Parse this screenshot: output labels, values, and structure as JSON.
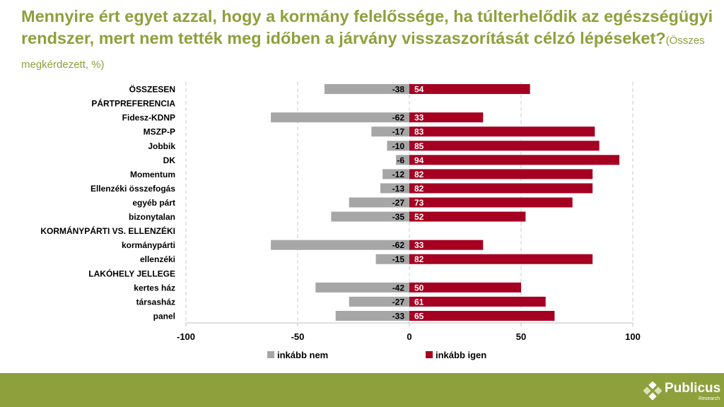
{
  "title": {
    "main": "Mennyire ért egyet azzal, hogy a kormány felelőssége, ha túlterhelődik az egészségügyi rendszer, mert nem tették meg időben a járvány visszaszorítását célzó lépéseket?",
    "sub": "(Összes megkérdezett, %)"
  },
  "colors": {
    "negative": "#a6a6a6",
    "positive": "#a50021",
    "accent": "#8ea03c"
  },
  "chart_data": {
    "type": "bar",
    "orientation": "horizontal",
    "stacked": "diverging",
    "categories": [
      "ÖSSZESEN",
      "PÁRTPREFERENCIA",
      "Fidesz-KDNP",
      "MSZP-P",
      "Jobbik",
      "DK",
      "Momentum",
      "Ellenzéki összefogás",
      "egyéb párt",
      "bizonytalan",
      "KORMÁNYPÁRTI VS. ELLENZÉKI",
      "kormánypárti",
      "ellenzéki",
      "LAKÓHELY JELLEGE",
      "kertes ház",
      "társasház",
      "panel"
    ],
    "series": [
      {
        "name": "inkább nem",
        "values": [
          -38,
          null,
          -62,
          -17,
          -10,
          -6,
          -12,
          -13,
          -27,
          -35,
          null,
          -62,
          -15,
          null,
          -42,
          -27,
          -33
        ]
      },
      {
        "name": "inkább igen",
        "values": [
          54,
          null,
          33,
          83,
          85,
          94,
          82,
          82,
          73,
          52,
          null,
          33,
          82,
          null,
          50,
          61,
          65
        ]
      }
    ],
    "xlim": [
      -100,
      100
    ],
    "xticks": [
      -100,
      -50,
      0,
      50,
      100
    ],
    "xlabel": "",
    "ylabel": "",
    "grid": "vertical dashed",
    "legend": "bottom-center"
  },
  "footer": {
    "brand": "Publicus",
    "tagline": "Research"
  }
}
